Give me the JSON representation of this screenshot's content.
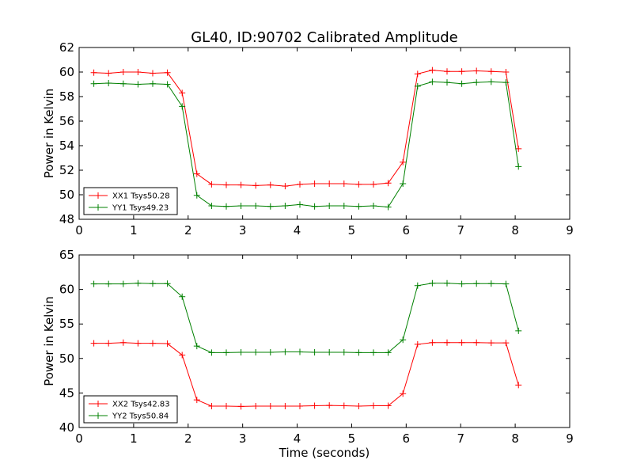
{
  "figure_title": "GL40, ID:90702 Calibrated Amplitude",
  "chart_data": [
    {
      "type": "line",
      "title": "GL40, ID:90702 Calibrated Amplitude",
      "xlabel": "",
      "ylabel": "Power in Kelvin",
      "xlim": [
        0,
        9
      ],
      "ylim": [
        48,
        62
      ],
      "xticks": [
        "0",
        "1",
        "2",
        "3",
        "4",
        "5",
        "6",
        "7",
        "8",
        "9"
      ],
      "yticks": [
        "48",
        "50",
        "52",
        "54",
        "56",
        "58",
        "60",
        "62"
      ],
      "grid": false,
      "legend_position": "bottom-left",
      "x": [
        0.27,
        0.54,
        0.81,
        1.08,
        1.35,
        1.62,
        1.89,
        2.16,
        2.43,
        2.7,
        2.97,
        3.24,
        3.51,
        3.78,
        4.05,
        4.32,
        4.59,
        4.86,
        5.13,
        5.4,
        5.67,
        5.94,
        6.21,
        6.48,
        6.75,
        7.02,
        7.29,
        7.56,
        7.83,
        8.06
      ],
      "series": [
        {
          "name": "XX1 Tsys50.28",
          "color": "#ff0000",
          "values": [
            59.95,
            59.9,
            60.0,
            60.0,
            59.9,
            59.95,
            58.3,
            51.7,
            50.85,
            50.8,
            50.8,
            50.75,
            50.8,
            50.7,
            50.85,
            50.9,
            50.9,
            50.9,
            50.85,
            50.85,
            50.95,
            52.65,
            59.85,
            60.15,
            60.05,
            60.05,
            60.1,
            60.05,
            60.0,
            53.75
          ]
        },
        {
          "name": "YY1 Tsys49.23",
          "color": "#008000",
          "values": [
            59.05,
            59.1,
            59.05,
            59.0,
            59.05,
            59.0,
            57.2,
            49.95,
            49.1,
            49.05,
            49.1,
            49.1,
            49.05,
            49.1,
            49.2,
            49.05,
            49.1,
            49.1,
            49.05,
            49.1,
            49.0,
            50.9,
            58.85,
            59.2,
            59.15,
            59.05,
            59.15,
            59.2,
            59.15,
            52.3
          ]
        }
      ]
    },
    {
      "type": "line",
      "title": "",
      "xlabel": "Time (seconds)",
      "ylabel": "Power in Kelvin",
      "xlim": [
        0,
        9
      ],
      "ylim": [
        40,
        65
      ],
      "xticks": [
        "0",
        "1",
        "2",
        "3",
        "4",
        "5",
        "6",
        "7",
        "8",
        "9"
      ],
      "yticks": [
        "40",
        "45",
        "50",
        "55",
        "60",
        "65"
      ],
      "grid": false,
      "legend_position": "bottom-left",
      "x": [
        0.27,
        0.54,
        0.81,
        1.08,
        1.35,
        1.62,
        1.89,
        2.16,
        2.43,
        2.7,
        2.97,
        3.24,
        3.51,
        3.78,
        4.05,
        4.32,
        4.59,
        4.86,
        5.13,
        5.4,
        5.67,
        5.94,
        6.21,
        6.48,
        6.75,
        7.02,
        7.29,
        7.56,
        7.83,
        8.06
      ],
      "series": [
        {
          "name": "XX2 Tsys42.83",
          "color": "#ff0000",
          "values": [
            52.2,
            52.2,
            52.3,
            52.2,
            52.2,
            52.15,
            50.5,
            44.0,
            43.1,
            43.1,
            43.05,
            43.1,
            43.1,
            43.1,
            43.1,
            43.15,
            43.2,
            43.15,
            43.1,
            43.15,
            43.15,
            44.9,
            52.05,
            52.3,
            52.3,
            52.3,
            52.3,
            52.25,
            52.25,
            46.15
          ]
        },
        {
          "name": "YY2 Tsys50.84",
          "color": "#008000",
          "values": [
            60.8,
            60.8,
            60.8,
            60.9,
            60.85,
            60.85,
            58.95,
            51.8,
            50.85,
            50.85,
            50.9,
            50.9,
            50.9,
            50.95,
            50.95,
            50.9,
            50.9,
            50.9,
            50.85,
            50.85,
            50.85,
            52.7,
            60.55,
            60.9,
            60.9,
            60.8,
            60.85,
            60.85,
            60.8,
            54.0
          ]
        }
      ]
    }
  ]
}
